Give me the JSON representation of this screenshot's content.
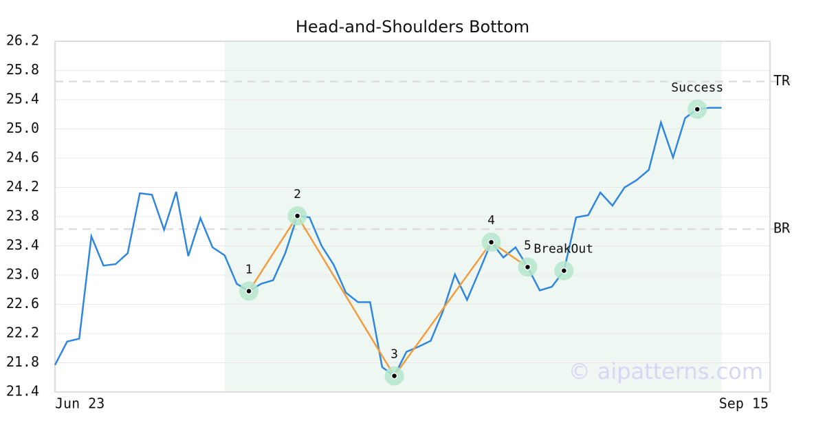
{
  "chart_data": {
    "type": "line",
    "title": "Head-and-Shoulders Bottom",
    "x": [
      0,
      1,
      2,
      3,
      4,
      5,
      6,
      7,
      8,
      9,
      10,
      11,
      12,
      13,
      14,
      15,
      16,
      17,
      18,
      19,
      20,
      21,
      22,
      23,
      24,
      25,
      26,
      27,
      28,
      29,
      30,
      31,
      32,
      33,
      34,
      35,
      36,
      37,
      38,
      39,
      40,
      41,
      42,
      43,
      44,
      45,
      46,
      47,
      48,
      49,
      50,
      51,
      52,
      53,
      54,
      55
    ],
    "values": [
      21.77,
      22.09,
      22.13,
      23.53,
      23.13,
      23.15,
      23.3,
      24.12,
      24.1,
      23.62,
      24.14,
      23.26,
      23.78,
      23.38,
      23.27,
      22.88,
      22.78,
      22.88,
      22.93,
      23.3,
      23.81,
      23.79,
      23.4,
      23.14,
      22.76,
      22.63,
      22.63,
      21.74,
      21.62,
      21.95,
      22.02,
      22.1,
      22.5,
      23.01,
      22.66,
      23.05,
      23.45,
      23.24,
      23.38,
      23.11,
      22.79,
      22.84,
      23.06,
      23.79,
      23.82,
      24.13,
      23.95,
      24.2,
      24.3,
      24.44,
      25.09,
      24.61,
      25.15,
      25.27,
      25.29,
      25.29
    ],
    "color": "#2e86de",
    "xlim": [
      0,
      59
    ],
    "xticks": [
      {
        "value": 0,
        "label": "Jun 23"
      },
      {
        "value": 59,
        "label": "Sep 15"
      }
    ],
    "ylim": [
      21.4,
      26.2
    ],
    "yticks": [
      21.4,
      21.8,
      22.2,
      22.6,
      {
        "value": 23,
        "label": "23.0"
      },
      23.4,
      23.8,
      24.2,
      24.6,
      {
        "value": 25,
        "label": "25.0"
      },
      25.4,
      25.8,
      26.2
    ],
    "grid": true,
    "shade": [
      14,
      55
    ],
    "levels": [
      {
        "label": "TR",
        "value": 25.65
      },
      {
        "label": "BR",
        "value": 23.63
      }
    ],
    "pattern": {
      "color": "#f39c3e",
      "points": [
        {
          "label": "1",
          "x": 16,
          "value": 22.78
        },
        {
          "label": "2",
          "x": 20,
          "value": 23.81
        },
        {
          "label": "3",
          "x": 28,
          "value": 21.62
        },
        {
          "label": "4",
          "x": 36,
          "value": 23.45
        },
        {
          "label": "5",
          "x": 39,
          "value": 23.11
        }
      ]
    },
    "signals": [
      {
        "label": "BreakOut",
        "x": 42,
        "value": 23.06
      },
      {
        "label": "Success",
        "x": 53,
        "value": 25.27
      }
    ],
    "watermark": "© aipatterns.com"
  }
}
